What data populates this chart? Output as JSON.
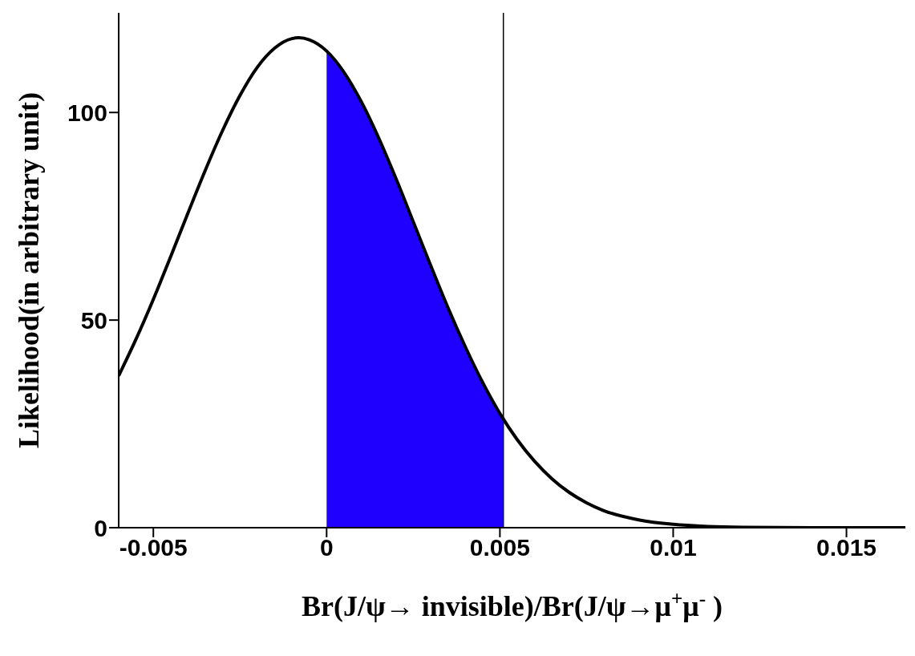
{
  "chart_data": {
    "type": "line",
    "xlabel": "Br(J/ψ→ invisible)/Br(J/ψ→μ$^{+}$μ$^{-}$  )",
    "ylabel": "Likelihood(in arbitrary unit)",
    "xlim": [
      -0.006,
      0.0167
    ],
    "ylim": [
      0,
      124
    ],
    "xticks": [
      -0.005,
      0,
      0.005,
      0.01,
      0.015
    ],
    "yticks": [
      0,
      50,
      100
    ],
    "series": [
      {
        "type": "area",
        "color": "#1f00ff",
        "x": [
          0,
          0.0005,
          0.001,
          0.0015,
          0.002,
          0.0025,
          0.003,
          0.0035,
          0.004,
          0.0045,
          0.005,
          0.0051
        ],
        "values": [
          114.8,
          109.7,
          102.6,
          93.9,
          84.1,
          73.7,
          63.2,
          53.0,
          43.6,
          35.0,
          27.5,
          26.2
        ]
      },
      {
        "color": "#000000",
        "x": [
          -0.006,
          -0.0055,
          -0.005,
          -0.0045,
          -0.004,
          -0.0035,
          -0.003,
          -0.0025,
          -0.002,
          -0.0015,
          -0.001,
          -0.0008,
          -0.0005,
          0,
          0.0005,
          0.001,
          0.0015,
          0.002,
          0.0025,
          0.003,
          0.0035,
          0.004,
          0.0045,
          0.005,
          0.0055,
          0.006,
          0.0065,
          0.007,
          0.0075,
          0.008,
          0.009,
          0.01,
          0.011,
          0.012,
          0.014,
          0.0167
        ],
        "values": [
          36.6,
          45.4,
          55.0,
          65.3,
          75.8,
          86.1,
          95.7,
          104.1,
          110.9,
          115.5,
          117.8,
          118,
          117.5,
          114.8,
          109.7,
          102.6,
          93.9,
          84.1,
          73.7,
          63.2,
          53.0,
          43.6,
          35.0,
          27.5,
          21.2,
          16.0,
          11.8,
          8.5,
          6.0,
          4.1,
          1.9,
          0.8,
          0.3,
          0.1,
          0,
          0
        ]
      }
    ],
    "ref_lines": [
      {
        "axis": "x",
        "value": 0.0051,
        "color": "#000000"
      }
    ],
    "grid": false,
    "legend": false,
    "marker": "none",
    "line_style": "solid"
  }
}
